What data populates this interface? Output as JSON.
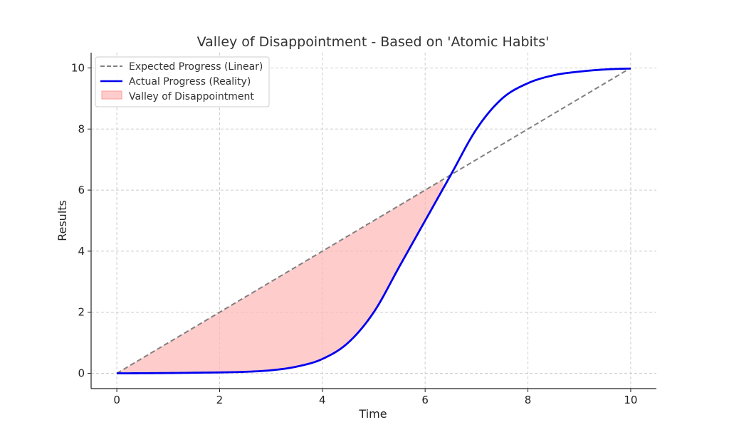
{
  "chart_data": {
    "type": "line",
    "title": "Valley of Disappointment - Based on 'Atomic Habits'",
    "xlabel": "Time",
    "ylabel": "Results",
    "xlim": [
      -0.5,
      10.5
    ],
    "ylim": [
      -0.5,
      10.5
    ],
    "x_ticks": [
      0,
      2,
      4,
      6,
      8,
      10
    ],
    "y_ticks": [
      0,
      2,
      4,
      6,
      8,
      10
    ],
    "grid": true,
    "legend_position": "top-left",
    "series": [
      {
        "name": "Expected Progress (Linear)",
        "style": "dashed",
        "color": "#808080",
        "x": [
          0,
          2,
          4,
          6,
          8,
          10
        ],
        "y": [
          0,
          2,
          4,
          6,
          8,
          10
        ]
      },
      {
        "name": "Actual Progress (Reality)",
        "style": "solid",
        "color": "#0000ee",
        "x": [
          0,
          1,
          2,
          2.5,
          3,
          3.5,
          4,
          4.5,
          5,
          5.5,
          6,
          6.5,
          7,
          7.5,
          8,
          8.5,
          9,
          9.5,
          10
        ],
        "y": [
          0,
          0.01,
          0.03,
          0.05,
          0.1,
          0.22,
          0.47,
          1.0,
          2.0,
          3.5,
          5.0,
          6.5,
          8.0,
          9.0,
          9.5,
          9.76,
          9.88,
          9.95,
          9.98
        ]
      }
    ],
    "fill": {
      "name": "Valley of Disappointment",
      "color": "#ffb6b6",
      "between": [
        "Expected Progress (Linear)",
        "Actual Progress (Reality)"
      ],
      "x_range": [
        0,
        6.35
      ]
    }
  }
}
